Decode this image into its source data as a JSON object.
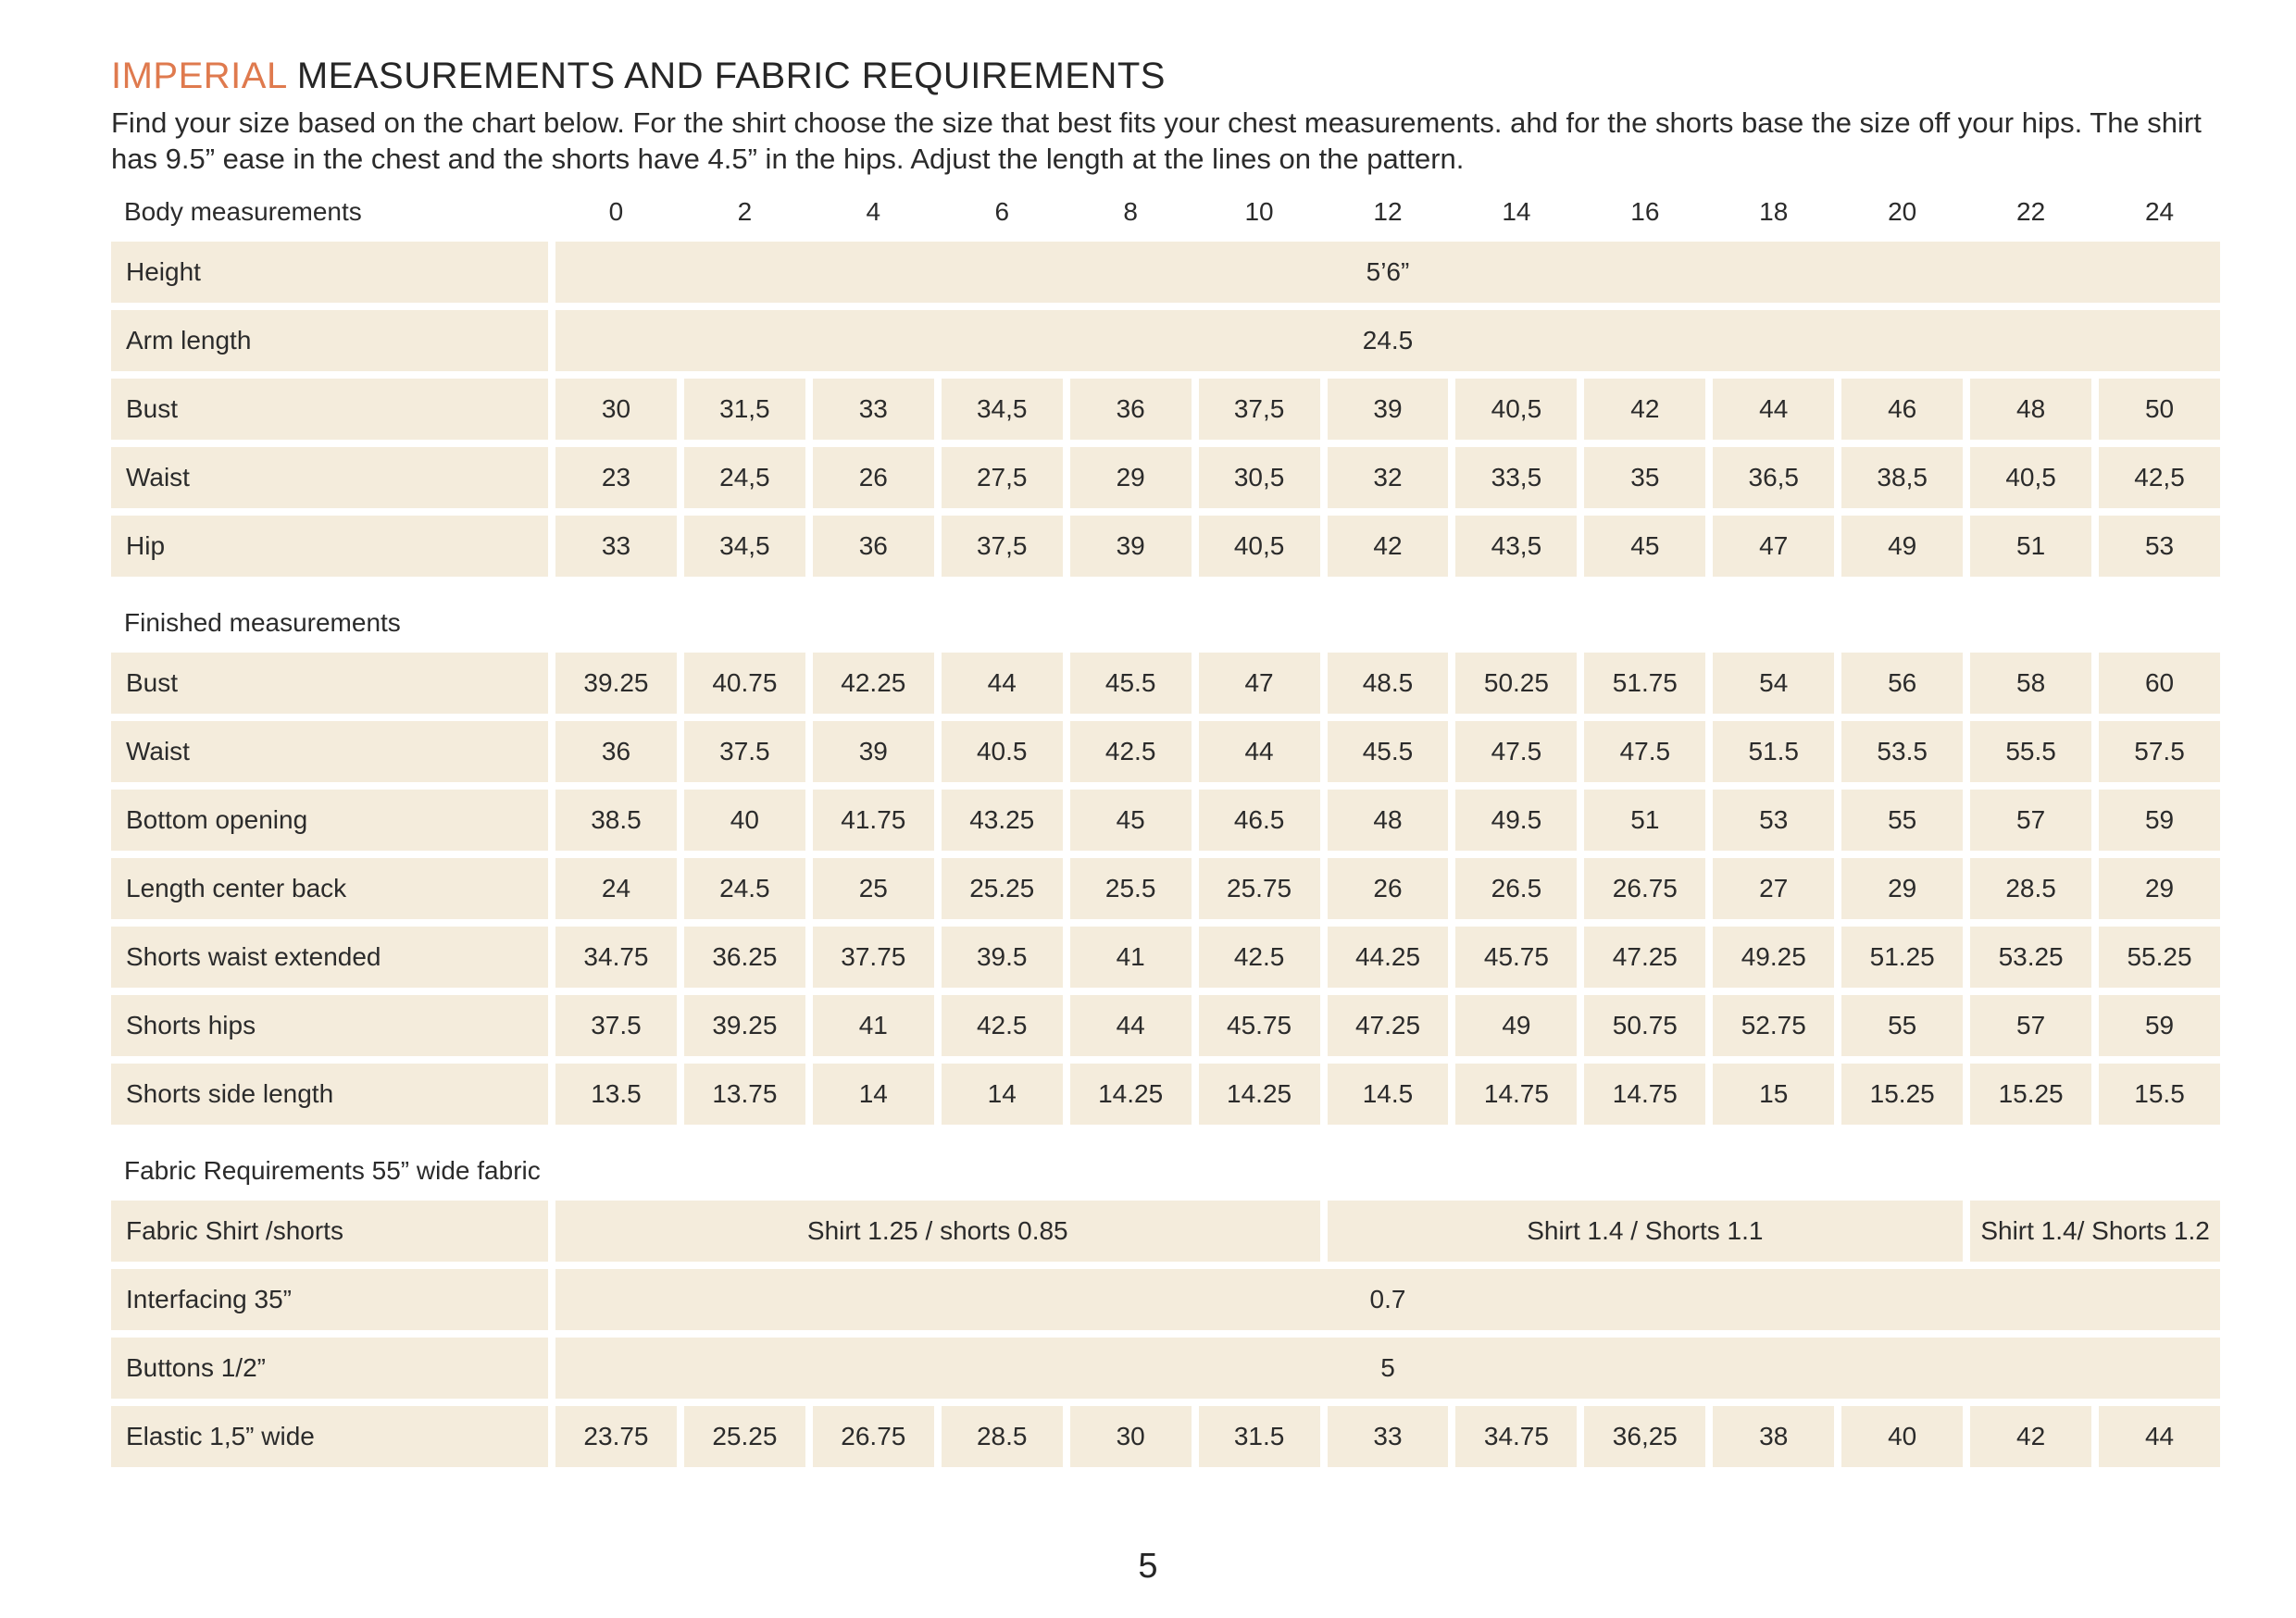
{
  "page": {
    "title_highlight": "IMPERIAL",
    "title_rest": " MEASUREMENTS AND FABRIC REQUIREMENTS",
    "intro": "Find your size based on the chart below. For the shirt choose the size that best fits your chest measurements.  ahd for the shorts base the size off your hips. The shirt  has 9.5” ease in the chest and the shorts have 4.5” in the hips. Adjust the length at the lines on the pattern.",
    "page_number": "5"
  },
  "colors": {
    "accent_orange": "#df7a4e",
    "cell_cream": "#f4ecdc",
    "text_dark": "#2b2b2b",
    "page_background": "#ffffff"
  },
  "table": {
    "header": {
      "label": "Body measurements",
      "sizes": [
        "0",
        "2",
        "4",
        "6",
        "8",
        "10",
        "12",
        "14",
        "16",
        "18",
        "20",
        "22",
        "24"
      ]
    },
    "rows": [
      {
        "type": "span",
        "label": "Height",
        "value": "5’6”"
      },
      {
        "type": "span",
        "label": "Arm length",
        "value": "24.5"
      },
      {
        "type": "values",
        "label": "Bust",
        "values": [
          "30",
          "31,5",
          "33",
          "34,5",
          "36",
          "37,5",
          "39",
          "40,5",
          "42",
          "44",
          "46",
          "48",
          "50"
        ]
      },
      {
        "type": "values",
        "label": "Waist",
        "values": [
          "23",
          "24,5",
          "26",
          "27,5",
          "29",
          "30,5",
          "32",
          "33,5",
          "35",
          "36,5",
          "38,5",
          "40,5",
          "42,5"
        ]
      },
      {
        "type": "values",
        "label": "Hip",
        "values": [
          "33",
          "34,5",
          "36",
          "37,5",
          "39",
          "40,5",
          "42",
          "43,5",
          "45",
          "47",
          "49",
          "51",
          "53"
        ]
      },
      {
        "type": "section",
        "label": "Finished measurements"
      },
      {
        "type": "values",
        "label": "Bust",
        "values": [
          "39.25",
          "40.75",
          "42.25",
          "44",
          "45.5",
          "47",
          "48.5",
          "50.25",
          "51.75",
          "54",
          "56",
          "58",
          "60"
        ]
      },
      {
        "type": "values",
        "label": "Waist",
        "values": [
          "36",
          "37.5",
          "39",
          "40.5",
          "42.5",
          "44",
          "45.5",
          "47.5",
          "47.5",
          "51.5",
          "53.5",
          "55.5",
          "57.5"
        ]
      },
      {
        "type": "values",
        "label": "Bottom opening",
        "values": [
          "38.5",
          "40",
          "41.75",
          "43.25",
          "45",
          "46.5",
          "48",
          "49.5",
          "51",
          "53",
          "55",
          "57",
          "59"
        ]
      },
      {
        "type": "values",
        "label": "Length center back",
        "values": [
          "24",
          "24.5",
          "25",
          "25.25",
          "25.5",
          "25.75",
          "26",
          "26.5",
          "26.75",
          "27",
          "29",
          "28.5",
          "29"
        ]
      },
      {
        "type": "values",
        "label": "Shorts waist extended",
        "values": [
          "34.75",
          "36.25",
          "37.75",
          "39.5",
          "41",
          "42.5",
          "44.25",
          "45.75",
          "47.25",
          "49.25",
          "51.25",
          "53.25",
          "55.25"
        ]
      },
      {
        "type": "values",
        "label": "Shorts hips",
        "values": [
          "37.5",
          "39.25",
          "41",
          "42.5",
          "44",
          "45.75",
          "47.25",
          "49",
          "50.75",
          "52.75",
          "55",
          "57",
          "59"
        ]
      },
      {
        "type": "values",
        "label": "Shorts side length",
        "values": [
          "13.5",
          "13.75",
          "14",
          "14",
          "14.25",
          "14.25",
          "14.5",
          "14.75",
          "14.75",
          "15",
          "15.25",
          "15.25",
          "15.5"
        ]
      },
      {
        "type": "section",
        "label": "Fabric Requirements 55” wide fabric"
      },
      {
        "type": "spans",
        "label": "Fabric Shirt /shorts",
        "spans": [
          {
            "text": "Shirt 1.25 / shorts 0.85",
            "cols": 6
          },
          {
            "text": "Shirt 1.4 /  Shorts 1.1",
            "cols": 5
          },
          {
            "text": "Shirt 1.4/ Shorts 1.2",
            "cols": 2
          }
        ]
      },
      {
        "type": "span",
        "label": "Interfacing 35”",
        "value": "0.7"
      },
      {
        "type": "span",
        "label": "Buttons 1/2”",
        "value": "5"
      },
      {
        "type": "values",
        "label": "Elastic 1,5” wide",
        "values": [
          "23.75",
          "25.25",
          "26.75",
          "28.5",
          "30",
          "31.5",
          "33",
          "34.75",
          "36,25",
          "38",
          "40",
          "42",
          "44"
        ]
      }
    ]
  }
}
